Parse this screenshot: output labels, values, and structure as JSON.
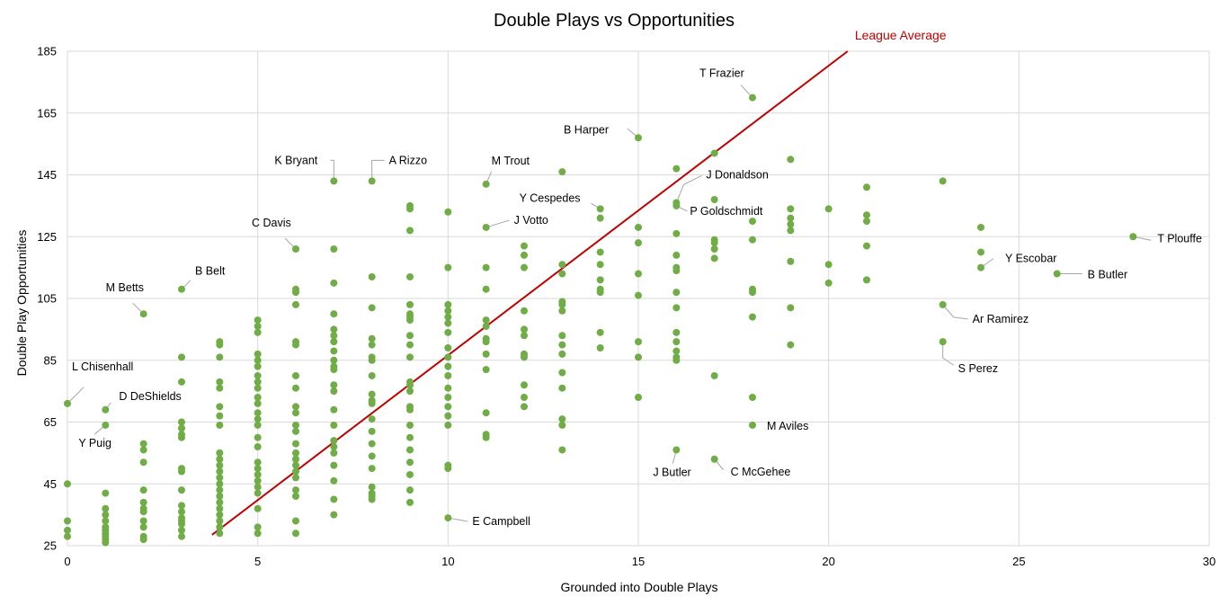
{
  "chart_data": {
    "type": "scatter",
    "title": "Double Plays vs Opportunities",
    "xlabel": "Grounded into Double Plays",
    "ylabel": "Double Play Opportunities",
    "xlim": [
      0,
      30
    ],
    "ylim": [
      25,
      185
    ],
    "x_ticks": [
      0,
      5,
      10,
      15,
      20,
      25,
      30
    ],
    "y_ticks": [
      25,
      45,
      65,
      85,
      105,
      125,
      145,
      165,
      185
    ],
    "grid": true,
    "legend": "none",
    "colors": {
      "points": "#70ad47",
      "reference_line": "#c00000",
      "grid": "#d9d9d9"
    },
    "reference_line": {
      "name": "League Average",
      "from": {
        "x": 3.8,
        "y": 28.5
      },
      "to": {
        "x": 20.5,
        "y": 185
      }
    },
    "labeled_points": [
      {
        "x": 0,
        "y": 71,
        "label": "L Chisenhall"
      },
      {
        "x": 1,
        "y": 69,
        "label": "D DeShields"
      },
      {
        "x": 1,
        "y": 64,
        "label": "Y Puig"
      },
      {
        "x": 2,
        "y": 100,
        "label": "M Betts"
      },
      {
        "x": 3,
        "y": 108,
        "label": "B Belt"
      },
      {
        "x": 6,
        "y": 121,
        "label": "C Davis"
      },
      {
        "x": 7,
        "y": 143,
        "label": "K Bryant"
      },
      {
        "x": 8,
        "y": 143,
        "label": "A Rizzo"
      },
      {
        "x": 10,
        "y": 34,
        "label": "E Campbell"
      },
      {
        "x": 11,
        "y": 142,
        "label": "M Trout"
      },
      {
        "x": 11,
        "y": 128,
        "label": "J Votto"
      },
      {
        "x": 14,
        "y": 134,
        "label": "Y Cespedes"
      },
      {
        "x": 15,
        "y": 157,
        "label": "B Harper"
      },
      {
        "x": 16,
        "y": 136,
        "label": "J Donaldson"
      },
      {
        "x": 16,
        "y": 135,
        "label": "P Goldschmidt"
      },
      {
        "x": 16,
        "y": 56,
        "label": "J Butler"
      },
      {
        "x": 17,
        "y": 53,
        "label": "C McGehee"
      },
      {
        "x": 18,
        "y": 170,
        "label": "T Frazier"
      },
      {
        "x": 18,
        "y": 64,
        "label": "M Aviles"
      },
      {
        "x": 23,
        "y": 103,
        "label": "Ar Ramirez"
      },
      {
        "x": 23,
        "y": 91,
        "label": "S Perez"
      },
      {
        "x": 24,
        "y": 115,
        "label": "Y Escobar"
      },
      {
        "x": 26,
        "y": 113,
        "label": "B Butler"
      },
      {
        "x": 28,
        "y": 125,
        "label": "T Plouffe"
      }
    ],
    "points": [
      [
        0,
        33
      ],
      [
        0,
        30
      ],
      [
        0,
        28
      ],
      [
        0,
        45
      ],
      [
        1,
        42
      ],
      [
        1,
        37
      ],
      [
        1,
        35
      ],
      [
        1,
        33
      ],
      [
        1,
        31
      ],
      [
        1,
        30
      ],
      [
        1,
        29
      ],
      [
        1,
        28
      ],
      [
        1,
        27
      ],
      [
        1,
        26
      ],
      [
        2,
        58
      ],
      [
        2,
        56
      ],
      [
        2,
        52
      ],
      [
        2,
        43
      ],
      [
        2,
        39
      ],
      [
        2,
        37
      ],
      [
        2,
        36
      ],
      [
        2,
        33
      ],
      [
        2,
        31
      ],
      [
        2,
        28
      ],
      [
        2,
        27
      ],
      [
        3,
        86
      ],
      [
        3,
        78
      ],
      [
        3,
        65
      ],
      [
        3,
        63
      ],
      [
        3,
        61
      ],
      [
        3,
        60
      ],
      [
        3,
        50
      ],
      [
        3,
        49
      ],
      [
        3,
        43
      ],
      [
        3,
        38
      ],
      [
        3,
        36
      ],
      [
        3,
        34
      ],
      [
        3,
        33
      ],
      [
        3,
        32
      ],
      [
        3,
        30
      ],
      [
        3,
        28
      ],
      [
        4,
        91
      ],
      [
        4,
        90
      ],
      [
        4,
        86
      ],
      [
        4,
        78
      ],
      [
        4,
        76
      ],
      [
        4,
        70
      ],
      [
        4,
        67
      ],
      [
        4,
        64
      ],
      [
        4,
        55
      ],
      [
        4,
        53
      ],
      [
        4,
        51
      ],
      [
        4,
        49
      ],
      [
        4,
        47
      ],
      [
        4,
        45
      ],
      [
        4,
        43
      ],
      [
        4,
        41
      ],
      [
        4,
        39
      ],
      [
        4,
        37
      ],
      [
        4,
        35
      ],
      [
        4,
        33
      ],
      [
        4,
        31
      ],
      [
        4,
        29
      ],
      [
        5,
        98
      ],
      [
        5,
        96
      ],
      [
        5,
        94
      ],
      [
        5,
        87
      ],
      [
        5,
        85
      ],
      [
        5,
        83
      ],
      [
        5,
        80
      ],
      [
        5,
        78
      ],
      [
        5,
        76
      ],
      [
        5,
        73
      ],
      [
        5,
        71
      ],
      [
        5,
        68
      ],
      [
        5,
        66
      ],
      [
        5,
        64
      ],
      [
        5,
        60
      ],
      [
        5,
        57
      ],
      [
        5,
        52
      ],
      [
        5,
        50
      ],
      [
        5,
        48
      ],
      [
        5,
        46
      ],
      [
        5,
        44
      ],
      [
        5,
        42
      ],
      [
        5,
        37
      ],
      [
        5,
        31
      ],
      [
        5,
        29
      ],
      [
        6,
        108
      ],
      [
        6,
        107
      ],
      [
        6,
        103
      ],
      [
        6,
        91
      ],
      [
        6,
        90
      ],
      [
        6,
        80
      ],
      [
        6,
        76
      ],
      [
        6,
        70
      ],
      [
        6,
        68
      ],
      [
        6,
        64
      ],
      [
        6,
        62
      ],
      [
        6,
        58
      ],
      [
        6,
        55
      ],
      [
        6,
        53
      ],
      [
        6,
        51
      ],
      [
        6,
        49
      ],
      [
        6,
        47
      ],
      [
        6,
        43
      ],
      [
        6,
        41
      ],
      [
        6,
        33
      ],
      [
        6,
        29
      ],
      [
        7,
        121
      ],
      [
        7,
        110
      ],
      [
        7,
        100
      ],
      [
        7,
        95
      ],
      [
        7,
        93
      ],
      [
        7,
        91
      ],
      [
        7,
        88
      ],
      [
        7,
        85
      ],
      [
        7,
        83
      ],
      [
        7,
        82
      ],
      [
        7,
        77
      ],
      [
        7,
        75
      ],
      [
        7,
        69
      ],
      [
        7,
        64
      ],
      [
        7,
        59
      ],
      [
        7,
        57
      ],
      [
        7,
        55
      ],
      [
        7,
        51
      ],
      [
        7,
        46
      ],
      [
        7,
        40
      ],
      [
        7,
        35
      ],
      [
        8,
        112
      ],
      [
        8,
        102
      ],
      [
        8,
        92
      ],
      [
        8,
        90
      ],
      [
        8,
        86
      ],
      [
        8,
        85
      ],
      [
        8,
        80
      ],
      [
        8,
        74
      ],
      [
        8,
        72
      ],
      [
        8,
        71
      ],
      [
        8,
        66
      ],
      [
        8,
        62
      ],
      [
        8,
        58
      ],
      [
        8,
        54
      ],
      [
        8,
        50
      ],
      [
        8,
        44
      ],
      [
        8,
        42
      ],
      [
        8,
        41
      ],
      [
        8,
        40
      ],
      [
        9,
        135
      ],
      [
        9,
        134
      ],
      [
        9,
        127
      ],
      [
        9,
        112
      ],
      [
        9,
        103
      ],
      [
        9,
        100
      ],
      [
        9,
        99
      ],
      [
        9,
        98
      ],
      [
        9,
        93
      ],
      [
        9,
        90
      ],
      [
        9,
        86
      ],
      [
        9,
        78
      ],
      [
        9,
        77
      ],
      [
        9,
        75
      ],
      [
        9,
        70
      ],
      [
        9,
        69
      ],
      [
        9,
        64
      ],
      [
        9,
        60
      ],
      [
        9,
        56
      ],
      [
        9,
        52
      ],
      [
        9,
        48
      ],
      [
        9,
        43
      ],
      [
        9,
        39
      ],
      [
        10,
        133
      ],
      [
        10,
        115
      ],
      [
        10,
        103
      ],
      [
        10,
        101
      ],
      [
        10,
        99
      ],
      [
        10,
        97
      ],
      [
        10,
        94
      ],
      [
        10,
        89
      ],
      [
        10,
        86
      ],
      [
        10,
        83
      ],
      [
        10,
        80
      ],
      [
        10,
        76
      ],
      [
        10,
        73
      ],
      [
        10,
        70
      ],
      [
        10,
        67
      ],
      [
        10,
        64
      ],
      [
        10,
        51
      ],
      [
        10,
        50
      ],
      [
        11,
        115
      ],
      [
        11,
        108
      ],
      [
        11,
        98
      ],
      [
        11,
        96
      ],
      [
        11,
        92
      ],
      [
        11,
        91
      ],
      [
        11,
        87
      ],
      [
        11,
        82
      ],
      [
        11,
        68
      ],
      [
        11,
        61
      ],
      [
        11,
        60
      ],
      [
        12,
        122
      ],
      [
        12,
        119
      ],
      [
        12,
        115
      ],
      [
        12,
        101
      ],
      [
        12,
        95
      ],
      [
        12,
        93
      ],
      [
        12,
        87
      ],
      [
        12,
        86
      ],
      [
        12,
        77
      ],
      [
        12,
        73
      ],
      [
        12,
        70
      ],
      [
        13,
        146
      ],
      [
        13,
        116
      ],
      [
        13,
        113
      ],
      [
        13,
        104
      ],
      [
        13,
        103
      ],
      [
        13,
        101
      ],
      [
        13,
        93
      ],
      [
        13,
        90
      ],
      [
        13,
        87
      ],
      [
        13,
        81
      ],
      [
        13,
        76
      ],
      [
        13,
        66
      ],
      [
        13,
        64
      ],
      [
        13,
        56
      ],
      [
        14,
        131
      ],
      [
        14,
        120
      ],
      [
        14,
        116
      ],
      [
        14,
        111
      ],
      [
        14,
        108
      ],
      [
        14,
        107
      ],
      [
        14,
        94
      ],
      [
        14,
        89
      ],
      [
        15,
        128
      ],
      [
        15,
        123
      ],
      [
        15,
        113
      ],
      [
        15,
        106
      ],
      [
        15,
        91
      ],
      [
        15,
        86
      ],
      [
        15,
        73
      ],
      [
        16,
        147
      ],
      [
        16,
        126
      ],
      [
        16,
        119
      ],
      [
        16,
        115
      ],
      [
        16,
        114
      ],
      [
        16,
        107
      ],
      [
        16,
        102
      ],
      [
        16,
        94
      ],
      [
        16,
        91
      ],
      [
        16,
        88
      ],
      [
        16,
        86
      ],
      [
        16,
        85
      ],
      [
        17,
        152
      ],
      [
        17,
        137
      ],
      [
        17,
        124
      ],
      [
        17,
        123
      ],
      [
        17,
        121
      ],
      [
        17,
        118
      ],
      [
        17,
        80
      ],
      [
        18,
        130
      ],
      [
        18,
        124
      ],
      [
        18,
        108
      ],
      [
        18,
        107
      ],
      [
        18,
        99
      ],
      [
        18,
        73
      ],
      [
        19,
        150
      ],
      [
        19,
        134
      ],
      [
        19,
        131
      ],
      [
        19,
        129
      ],
      [
        19,
        127
      ],
      [
        19,
        117
      ],
      [
        19,
        102
      ],
      [
        19,
        90
      ],
      [
        20,
        134
      ],
      [
        20,
        116
      ],
      [
        20,
        110
      ],
      [
        21,
        141
      ],
      [
        21,
        132
      ],
      [
        21,
        130
      ],
      [
        21,
        122
      ],
      [
        21,
        111
      ],
      [
        23,
        143
      ],
      [
        24,
        128
      ],
      [
        24,
        120
      ]
    ]
  }
}
